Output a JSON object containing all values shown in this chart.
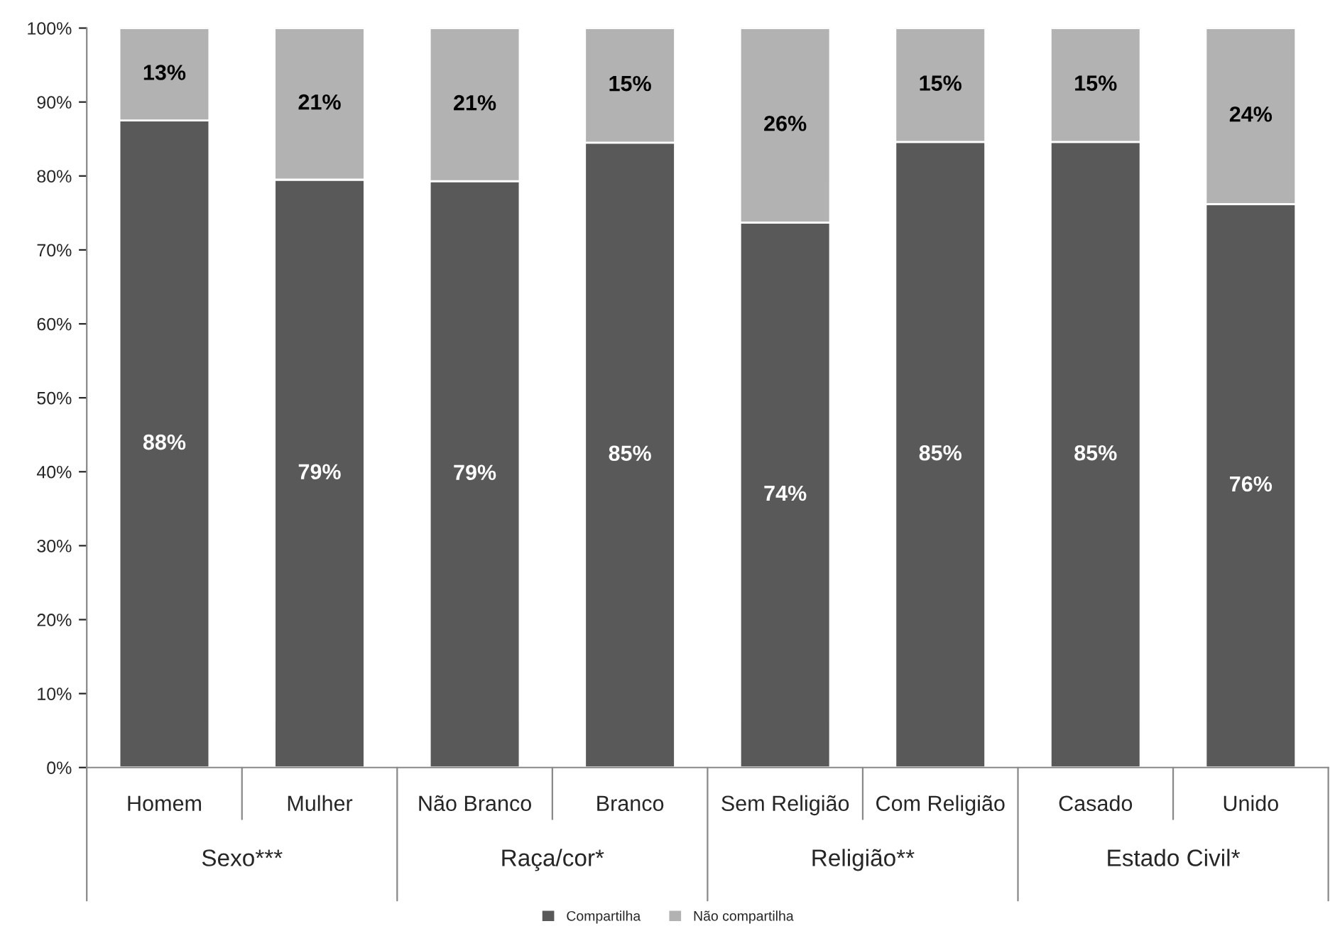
{
  "chart_data": {
    "type": "bar",
    "stacked": true,
    "categories": [
      "Homem",
      "Mulher",
      "Não Branco",
      "Branco",
      "Sem Religião",
      "Com Religião",
      "Casado",
      "Unido"
    ],
    "series": [
      {
        "name": "Compartilha",
        "color": "#595959",
        "values": [
          87.5,
          79.5,
          79.3,
          84.5,
          73.7,
          84.6,
          84.6,
          76.2
        ],
        "value_labels": [
          "88%",
          "79%",
          "79%",
          "85%",
          "74%",
          "85%",
          "85%",
          "76%"
        ]
      },
      {
        "name": "Não compartilha",
        "color": "#b2b2b2",
        "values": [
          12.5,
          20.5,
          20.7,
          15.5,
          26.3,
          15.4,
          15.4,
          23.8
        ],
        "value_labels": [
          "13%",
          "21%",
          "21%",
          "15%",
          "26%",
          "15%",
          "15%",
          "24%"
        ]
      }
    ],
    "annotations": [
      "Sexo***",
      "Raça/cor*",
      "Religião**",
      "Estado Civil*"
    ],
    "ylim": [
      0,
      100
    ],
    "yticks": [
      {
        "value": 0,
        "label": "0%"
      },
      {
        "value": 10,
        "label": "10%"
      },
      {
        "value": 20,
        "label": "20%"
      },
      {
        "value": 30,
        "label": "30%"
      },
      {
        "value": 40,
        "label": "40%"
      },
      {
        "value": 50,
        "label": "50%"
      },
      {
        "value": 60,
        "label": "60%"
      },
      {
        "value": 70,
        "label": "70%"
      },
      {
        "value": 80,
        "label": "80%"
      },
      {
        "value": 90,
        "label": "90%"
      },
      {
        "value": 100,
        "label": "100%"
      }
    ],
    "grid": false,
    "legend": "bottom"
  }
}
